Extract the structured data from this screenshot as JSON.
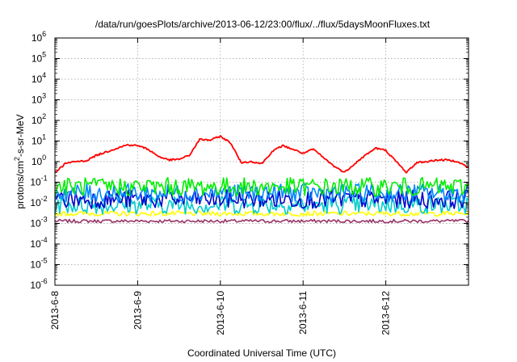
{
  "chart_data": {
    "type": "line",
    "title": "/data/run/goesPlots/archive/2013-06-12/23:00/flux/../flux/5daysMoonFluxes.txt",
    "xlabel": "Coordinated Universal Time (UTC)",
    "ylabel": {
      "base": "protons/cm",
      "sup": "2",
      "rest": "-s-sr-MeV"
    },
    "yscale": "log",
    "ylim_exponents": [
      -6,
      6
    ],
    "y_ticks": [
      {
        "base": "10",
        "exp": "-6"
      },
      {
        "base": "10",
        "exp": "-5"
      },
      {
        "base": "10",
        "exp": "-4"
      },
      {
        "base": "10",
        "exp": "-3"
      },
      {
        "base": "10",
        "exp": "-2"
      },
      {
        "base": "10",
        "exp": "-1"
      },
      {
        "base": "10",
        "exp": "0"
      },
      {
        "base": "10",
        "exp": "1"
      },
      {
        "base": "10",
        "exp": "2"
      },
      {
        "base": "10",
        "exp": "3"
      },
      {
        "base": "10",
        "exp": "4"
      },
      {
        "base": "10",
        "exp": "5"
      },
      {
        "base": "10",
        "exp": "6"
      }
    ],
    "x_range": [
      "2013-06-08 00:00",
      "2013-06-13 00:00"
    ],
    "x_ticks": [
      "2013-6-8",
      "2013-6-9",
      "2013-6-10",
      "2013-6-11",
      "2013-6-12"
    ],
    "grid": true,
    "series_colors": [
      "#ff0000",
      "#00ee00",
      "#0088ff",
      "#0000cc",
      "#00cccc",
      "#ffff00",
      "#993366"
    ],
    "series": [
      {
        "color": "#ff0000",
        "x": [
          "2013-06-08 00:00",
          "2013-06-08 03:00",
          "2013-06-08 06:00",
          "2013-06-08 09:00",
          "2013-06-08 12:00",
          "2013-06-08 15:00",
          "2013-06-08 18:00",
          "2013-06-08 21:00",
          "2013-06-09 00:00",
          "2013-06-09 03:00",
          "2013-06-09 06:00",
          "2013-06-09 09:00",
          "2013-06-09 12:00",
          "2013-06-09 15:00",
          "2013-06-09 18:00",
          "2013-06-09 21:00",
          "2013-06-10 00:00",
          "2013-06-10 03:00",
          "2013-06-10 06:00",
          "2013-06-10 09:00",
          "2013-06-10 12:00",
          "2013-06-10 15:00",
          "2013-06-10 18:00",
          "2013-06-10 21:00",
          "2013-06-11 00:00",
          "2013-06-11 03:00",
          "2013-06-11 06:00",
          "2013-06-11 09:00",
          "2013-06-11 12:00",
          "2013-06-11 15:00",
          "2013-06-11 18:00",
          "2013-06-11 21:00",
          "2013-06-12 00:00",
          "2013-06-12 03:00",
          "2013-06-12 06:00",
          "2013-06-12 09:00",
          "2013-06-12 12:00",
          "2013-06-12 15:00",
          "2013-06-12 18:00",
          "2013-06-12 21:00",
          "2013-06-13 00:00"
        ],
        "y": [
          0.3,
          0.8,
          1.0,
          1.1,
          2.0,
          3.0,
          4.5,
          6.5,
          6.0,
          4.0,
          1.8,
          1.2,
          1.3,
          2.0,
          12.0,
          11.0,
          17.0,
          8.0,
          0.9,
          1.0,
          0.8,
          3.0,
          6.0,
          4.0,
          2.5,
          4.0,
          1.5,
          0.6,
          0.3,
          0.8,
          2.0,
          4.5,
          3.5,
          1.0,
          0.3,
          0.9,
          1.0,
          1.2,
          1.2,
          1.0,
          0.5
        ]
      },
      {
        "color": "#00ee00",
        "x_range": [
          "2013-06-08 00:00",
          "2013-06-13 00:00"
        ],
        "y_approx": 0.06
      },
      {
        "color": "#0088ff",
        "x_range": [
          "2013-06-08 00:00",
          "2013-06-13 00:00"
        ],
        "y_approx": 0.03
      },
      {
        "color": "#0000cc",
        "x_range": [
          "2013-06-08 00:00",
          "2013-06-13 00:00"
        ],
        "y_approx": 0.015
      },
      {
        "color": "#00cccc",
        "x_range": [
          "2013-06-08 00:00",
          "2013-06-13 00:00"
        ],
        "y_approx": 0.008
      },
      {
        "color": "#ffff00",
        "x_range": [
          "2013-06-08 00:00",
          "2013-06-13 00:00"
        ],
        "y_approx": 0.003
      },
      {
        "color": "#993366",
        "x_range": [
          "2013-06-08 00:00",
          "2013-06-13 00:00"
        ],
        "y_approx": 0.0013
      }
    ]
  }
}
